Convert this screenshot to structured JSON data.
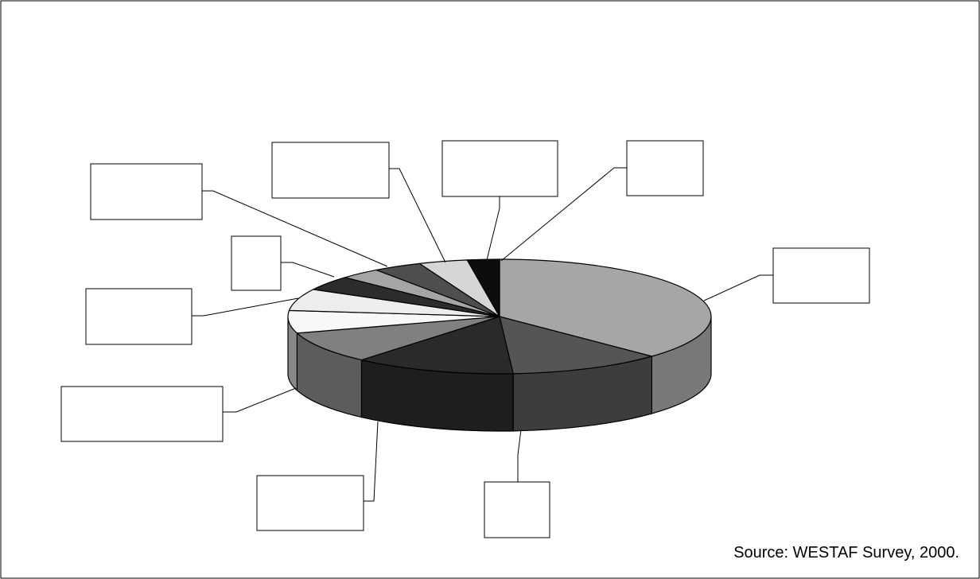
{
  "chart_data": {
    "type": "pie",
    "style": "3d-exploded-view-none",
    "categories": [
      "",
      "",
      "",
      "",
      "",
      "",
      "",
      "",
      "",
      "",
      ""
    ],
    "values": [
      38.0,
      12.0,
      12.6,
      9.2,
      6.5,
      6.3,
      4.2,
      3.2,
      3.8,
      3.8,
      2.5
    ],
    "colors": [
      "#a6a6a6",
      "#555555",
      "#2a2a2a",
      "#808080",
      "#f8f8f8",
      "#ededed",
      "#2c2c2c",
      "#a5a5a5",
      "#4e4e4e",
      "#d6d6d6",
      "#0d0d0d"
    ],
    "legend": "none",
    "labels_text": [
      "",
      "",
      "",
      "",
      "",
      "",
      "",
      "",
      "",
      "",
      ""
    ]
  },
  "footer": {
    "source": "Source: WESTAF Survey, 2000."
  }
}
